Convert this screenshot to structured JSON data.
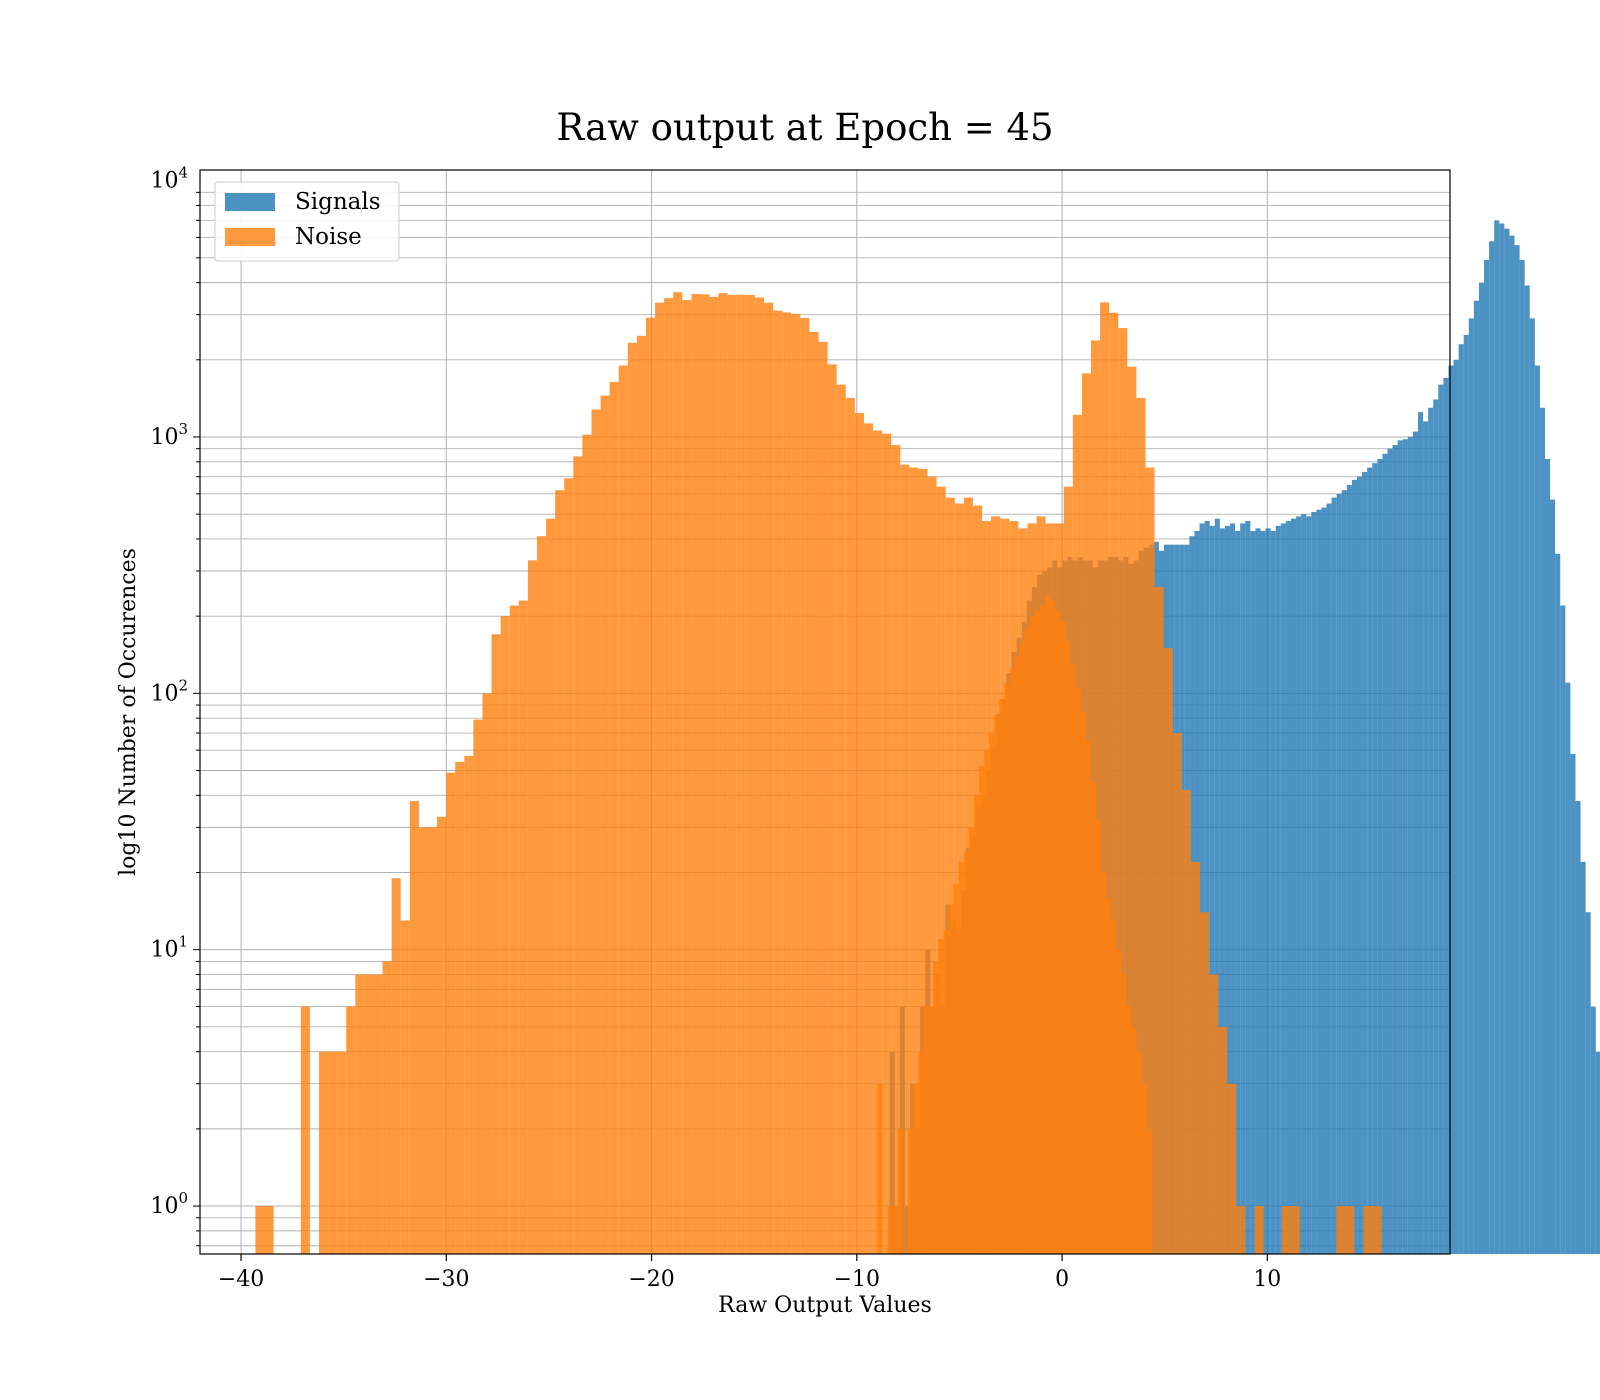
{
  "chart_data": {
    "type": "bar",
    "title": "Raw output at Epoch = 45",
    "xlabel": "Raw Output Values",
    "ylabel": "log10 Number of Occurences",
    "xlim": [
      -42,
      18.9
    ],
    "ylim": [
      0.65,
      11000
    ],
    "yscale": "log",
    "grid": true,
    "grid_minor_y": true,
    "legend_placement": "top-left",
    "x_ticks": [
      {
        "value": -40,
        "label": "−40"
      },
      {
        "value": -30,
        "label": "−30"
      },
      {
        "value": -20,
        "label": "−20"
      },
      {
        "value": -10,
        "label": "−10"
      },
      {
        "value": 0,
        "label": "0"
      },
      {
        "value": 10,
        "label": "10"
      }
    ],
    "y_ticks": [
      {
        "value": 1,
        "base": "10",
        "exp": "0"
      },
      {
        "value": 10,
        "base": "10",
        "exp": "1"
      },
      {
        "value": 100,
        "base": "10",
        "exp": "2"
      },
      {
        "value": 1000,
        "base": "10",
        "exp": "3"
      },
      {
        "value": 10000,
        "base": "10",
        "exp": "4"
      }
    ],
    "series": [
      {
        "name": "Signals",
        "color": "#1f77b4",
        "opacity": 0.8,
        "bin_start": -8.4,
        "bin_width": 0.2475,
        "values": [
          4,
          1,
          6,
          1,
          3,
          2,
          6,
          10,
          6,
          8,
          6,
          15,
          13,
          12,
          17,
          25,
          28,
          36,
          40,
          50,
          62,
          83,
          95,
          120,
          145,
          165,
          190,
          230,
          260,
          290,
          300,
          310,
          330,
          310,
          330,
          340,
          330,
          340,
          330,
          330,
          310,
          330,
          330,
          340,
          340,
          330,
          340,
          320,
          330,
          360,
          370,
          380,
          390,
          360,
          380,
          380,
          380,
          380,
          380,
          410,
          430,
          460,
          470,
          450,
          480,
          440,
          450,
          460,
          430,
          460,
          470,
          430,
          440,
          430,
          440,
          430,
          450,
          460,
          470,
          480,
          490,
          500,
          490,
          510,
          520,
          530,
          550,
          580,
          600,
          620,
          650,
          680,
          700,
          730,
          760,
          790,
          820,
          860,
          900,
          930,
          970,
          980,
          1000,
          1050,
          1250,
          1150,
          1300,
          1400,
          1600,
          1700,
          1900,
          2000,
          2300,
          2500,
          2900,
          3400,
          4000,
          4900,
          5800,
          7000,
          6800,
          6500,
          6100,
          5600,
          4900,
          3900,
          2900,
          1900,
          1300,
          820,
          570,
          350,
          220,
          110,
          58,
          38,
          22,
          14,
          6,
          4,
          5,
          4
        ]
      },
      {
        "name": "Noise",
        "color": "#ff7f0e",
        "opacity": 0.8,
        "bin_start": -39.3,
        "bin_width": 0.4425,
        "values": [
          1,
          1,
          0,
          0,
          0,
          6,
          0,
          4,
          4,
          4,
          6,
          8,
          8,
          8,
          9,
          19,
          13,
          38,
          30,
          30,
          33,
          49,
          54,
          57,
          79,
          100,
          170,
          200,
          220,
          230,
          330,
          410,
          480,
          620,
          690,
          840,
          1020,
          1280,
          1450,
          1640,
          1900,
          2330,
          2480,
          2920,
          3340,
          3480,
          3670,
          3420,
          3610,
          3600,
          3520,
          3640,
          3580,
          3590,
          3580,
          3500,
          3340,
          3110,
          3060,
          3020,
          2910,
          2570,
          2350,
          1920,
          1600,
          1420,
          1240,
          1130,
          1060,
          1030,
          930,
          780,
          760,
          750,
          700,
          640,
          580,
          550,
          580,
          540,
          470,
          490,
          480,
          470,
          440,
          460,
          490,
          460,
          460,
          640,
          1220,
          1770,
          2380,
          3350,
          3050,
          2660,
          1880,
          1420,
          760,
          260,
          150,
          70,
          42,
          22,
          14,
          8,
          5,
          3,
          1,
          0,
          1,
          0,
          0,
          1,
          1,
          0,
          0,
          0,
          0,
          1,
          1,
          0,
          1,
          1
        ]
      },
      {
        "name": "",
        "color": "#ff7f0e",
        "opacity": 0.8,
        "bin_start": -9.0,
        "bin_width": 0.2475,
        "values": [
          3,
          0,
          1,
          1,
          2,
          0,
          2,
          3,
          4,
          6,
          6,
          9,
          11,
          12,
          15,
          18,
          22,
          24,
          30,
          40,
          52,
          60,
          70,
          82,
          95,
          110,
          125,
          140,
          160,
          180,
          200,
          210,
          220,
          240,
          230,
          210,
          190,
          160,
          130,
          105,
          85,
          65,
          45,
          32,
          20,
          16,
          13,
          10,
          8,
          6,
          5,
          4,
          3,
          2
        ]
      }
    ]
  }
}
